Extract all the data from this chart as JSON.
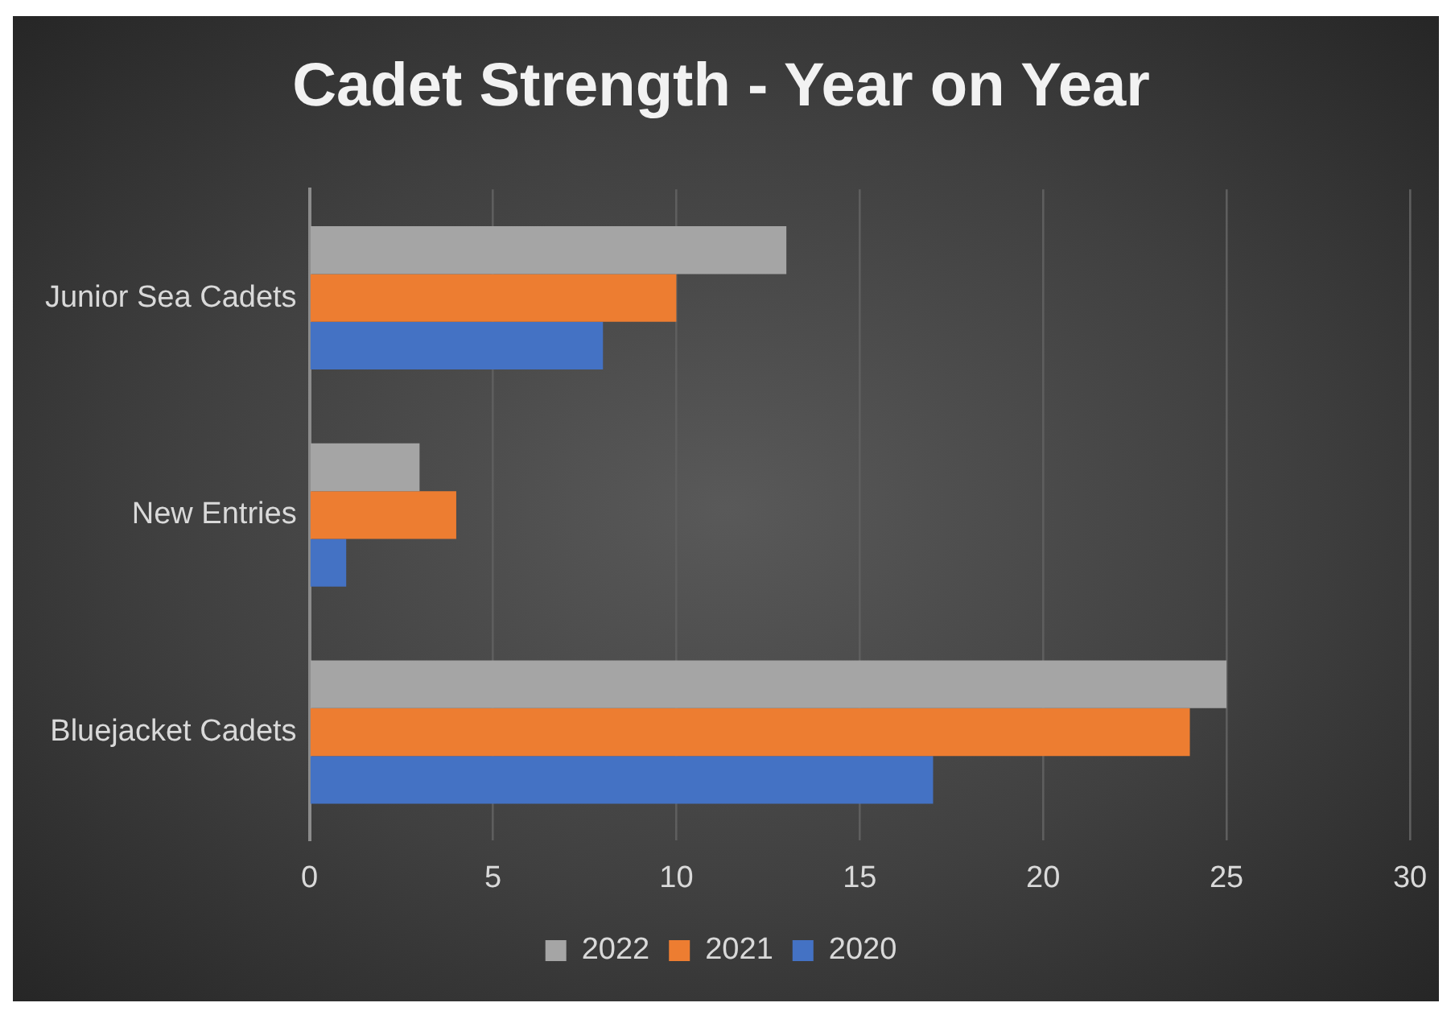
{
  "chart_data": {
    "type": "bar",
    "orientation": "horizontal",
    "title": "Cadet Strength - Year on Year",
    "categories": [
      "Junior Sea Cadets",
      "New Entries",
      "Bluejacket Cadets"
    ],
    "series": [
      {
        "name": "2022",
        "color": "#a5a5a5",
        "values": [
          13,
          3,
          25
        ]
      },
      {
        "name": "2021",
        "color": "#ed7d31",
        "values": [
          10,
          4,
          24
        ]
      },
      {
        "name": "2020",
        "color": "#4472c4",
        "values": [
          8,
          1,
          17
        ]
      }
    ],
    "xlim": [
      0,
      30
    ],
    "xticks": [
      0,
      5,
      10,
      15,
      20,
      25,
      30
    ],
    "grid": "x",
    "legend": "bottom"
  }
}
